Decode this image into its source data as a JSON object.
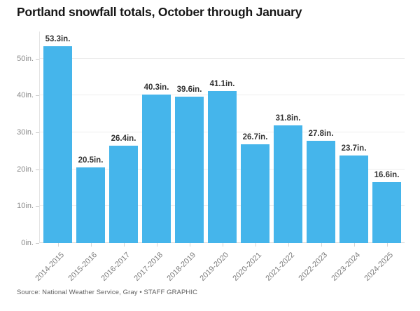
{
  "title": "Portland snowfall totals, October through January",
  "source": "Source: National Weather Service, Gray • STAFF GRAPHIC",
  "colors": {
    "bar": "#45b5eb",
    "title_text": "#161616",
    "value_label_text": "#333333",
    "axis_label_text": "#8a8a8a",
    "gridline": "#ededed"
  },
  "chart_data": {
    "type": "bar",
    "title": "Portland snowfall totals, October through January",
    "categories": [
      "2014-2015",
      "2015-2016",
      "2016-2017",
      "2017-2018",
      "2018-2019",
      "2019-2020",
      "2020-2021",
      "2021-2022",
      "2022-2023",
      "2023-2024",
      "2024-2025"
    ],
    "values": [
      53.3,
      20.5,
      26.4,
      40.3,
      39.6,
      41.1,
      26.7,
      31.8,
      27.8,
      23.7,
      16.6
    ],
    "value_labels": [
      "53.3in.",
      "20.5in.",
      "26.4in.",
      "40.3in.",
      "39.6in.",
      "41.1in.",
      "26.7in.",
      "31.8in.",
      "27.8in.",
      "23.7in.",
      "16.6in."
    ],
    "unit": "in.",
    "xlabel": "",
    "ylabel": "",
    "ylim": [
      0,
      57
    ],
    "yticks": [
      0,
      10,
      20,
      30,
      40,
      50
    ],
    "ytick_labels": [
      "0in.",
      "10in.",
      "20in.",
      "30in.",
      "40in.",
      "50in."
    ],
    "grid": true,
    "legend": false,
    "bar_color": "#45b5eb"
  }
}
